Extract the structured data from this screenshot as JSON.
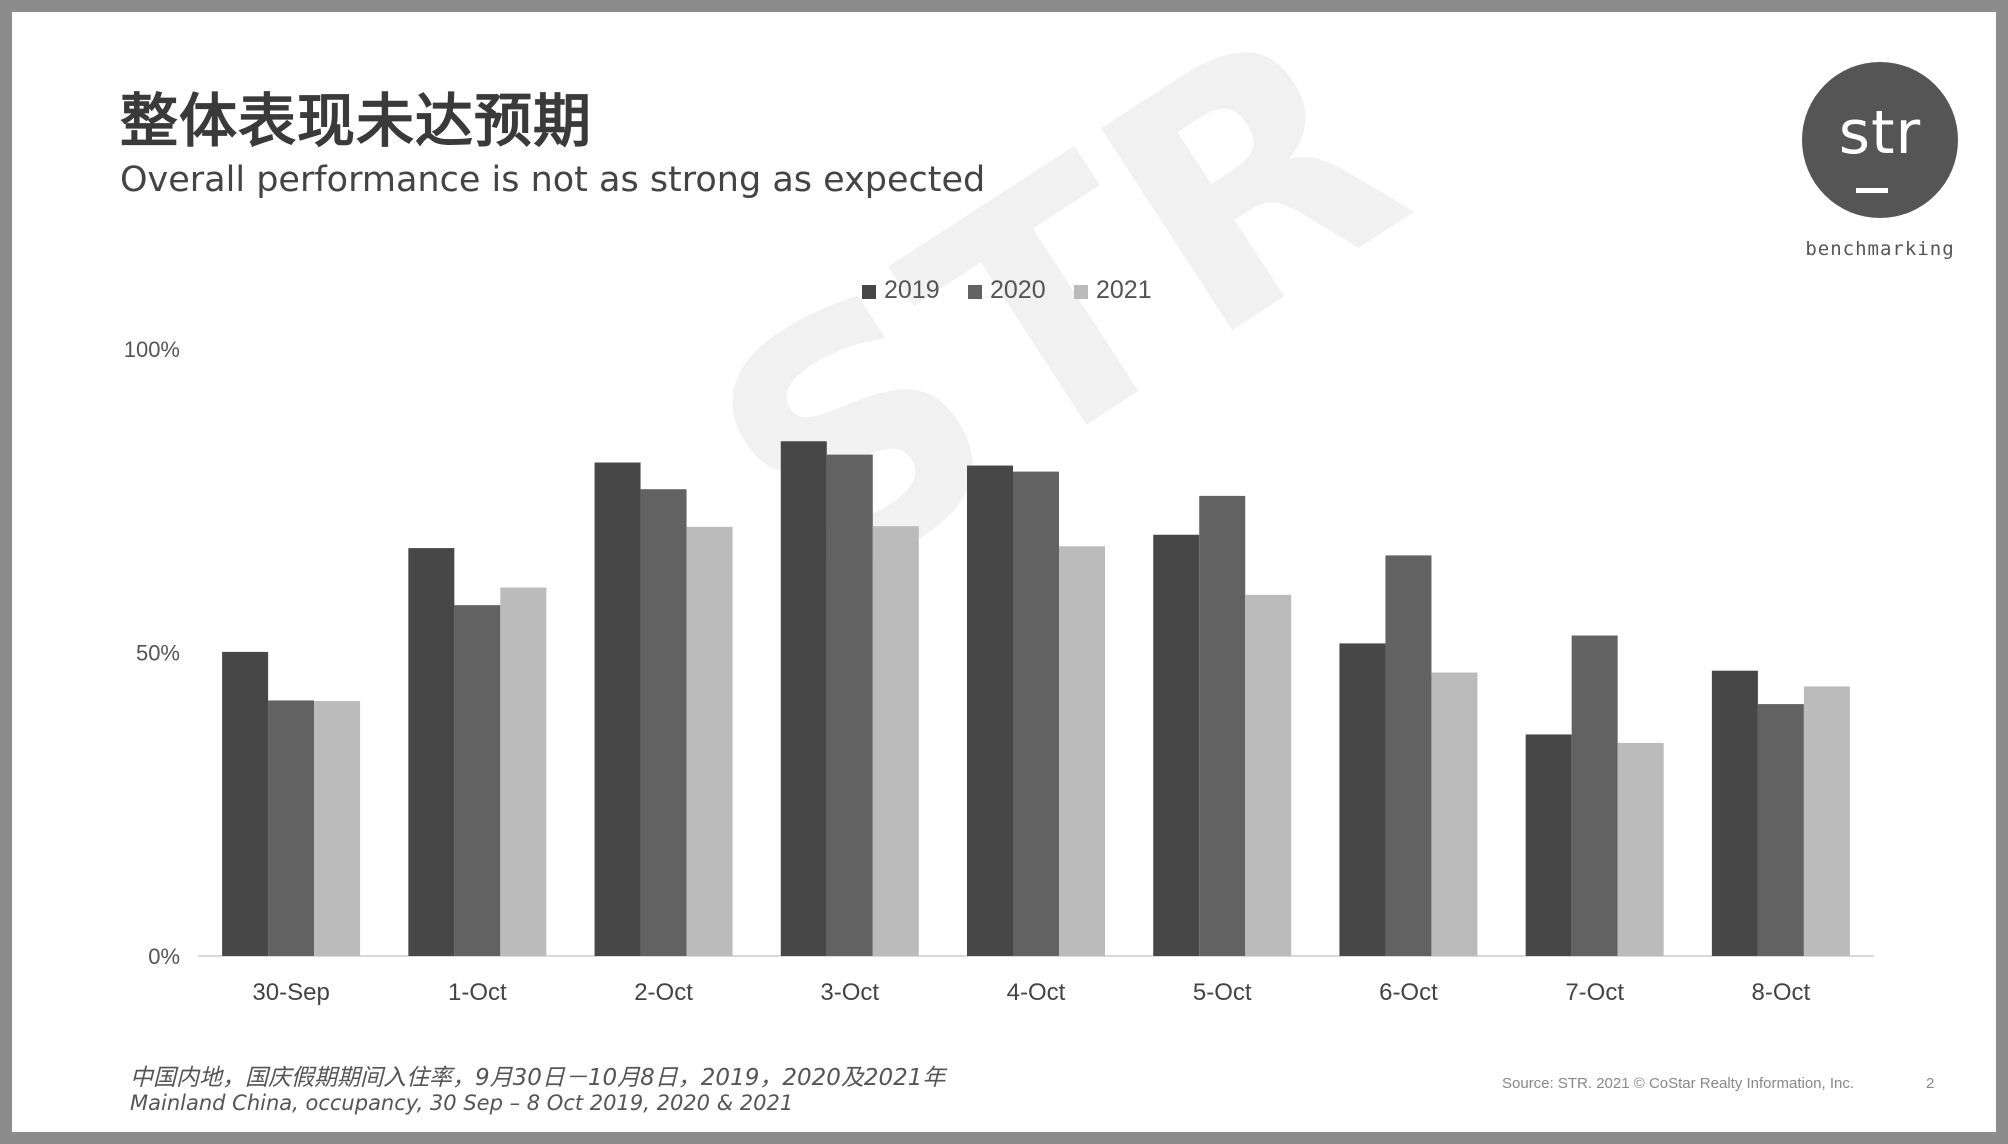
{
  "title_cn": "整体表现未达预期",
  "title_en": "Overall performance is not as strong as expected",
  "logo": {
    "text": "str",
    "subtext": "benchmarking"
  },
  "watermark": "STR",
  "footnote_cn": "中国内地，国庆假期期间入住率，9月30日－10月8日，2019，2020及2021年",
  "footnote_en": "Mainland China, occupancy, 30 Sep – 8 Oct 2019, 2020 & 2021",
  "source": "Source: STR. 2021 © CoStar Realty Information, Inc.",
  "page_number": "2",
  "chart_data": {
    "type": "bar",
    "categories": [
      "30-Sep",
      "1-Oct",
      "2-Oct",
      "3-Oct",
      "4-Oct",
      "5-Oct",
      "6-Oct",
      "7-Oct",
      "8-Oct"
    ],
    "series": [
      {
        "name": "2019",
        "color": "#474747",
        "values": [
          50.1,
          67.2,
          81.3,
          84.8,
          80.8,
          69.4,
          51.5,
          36.5,
          47.0
        ]
      },
      {
        "name": "2020",
        "color": "#626262",
        "values": [
          42.1,
          57.8,
          76.9,
          82.6,
          79.8,
          75.8,
          66.0,
          52.8,
          41.5
        ]
      },
      {
        "name": "2021",
        "color": "#bbbbbb",
        "values": [
          42.0,
          60.7,
          70.7,
          70.8,
          67.5,
          59.5,
          46.7,
          35.1,
          44.4
        ]
      }
    ],
    "y_ticks": [
      "0%",
      "50%",
      "100%"
    ],
    "ylim": [
      0,
      100
    ],
    "legend_position": "top-center",
    "grid": false
  }
}
